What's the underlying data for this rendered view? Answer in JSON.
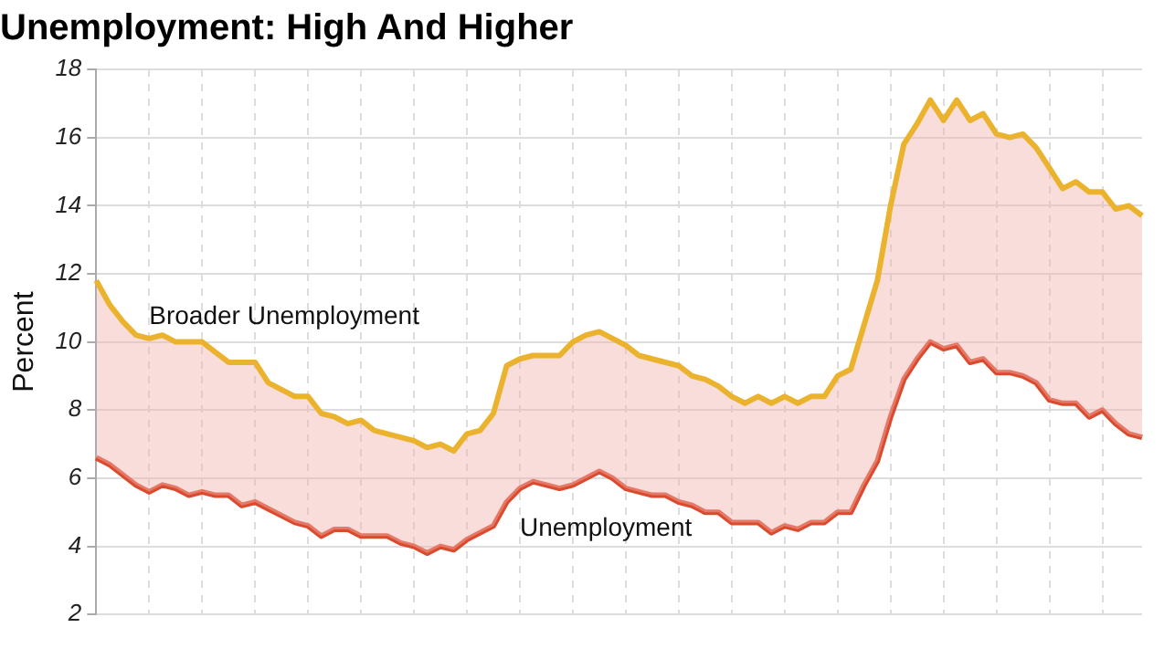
{
  "chart_data": {
    "type": "line",
    "title": "Unemployment: High And Higher",
    "ylabel": "Percent",
    "categories": [
      null,
      null,
      null,
      null,
      null,
      null,
      null,
      null,
      null,
      null,
      null,
      null,
      null,
      null,
      null,
      null,
      null,
      null,
      null,
      null,
      null,
      null,
      null,
      null,
      null,
      null,
      null,
      null,
      null,
      null,
      null,
      null,
      null,
      null,
      null,
      null,
      null,
      null,
      null,
      null,
      null,
      null,
      null,
      null,
      null,
      null,
      null,
      null,
      null,
      null,
      null,
      null,
      null,
      null,
      null,
      null,
      null,
      null,
      null,
      null,
      null,
      null,
      null,
      null,
      null,
      null,
      null,
      null,
      null,
      null,
      null,
      null,
      null,
      null,
      null,
      null,
      null,
      null,
      null,
      null
    ],
    "series": [
      {
        "name": "Broader Unemployment",
        "type": "area",
        "color": "#ebb32d",
        "values": [
          11.8,
          11.1,
          10.6,
          10.2,
          10.1,
          10.2,
          10.0,
          10.0,
          10.0,
          9.7,
          9.4,
          9.4,
          9.4,
          8.8,
          8.6,
          8.4,
          8.4,
          7.9,
          7.8,
          7.6,
          7.7,
          7.4,
          7.3,
          7.2,
          7.1,
          6.9,
          7.0,
          6.8,
          7.3,
          7.4,
          7.9,
          9.3,
          9.5,
          9.6,
          9.6,
          9.6,
          10.0,
          10.2,
          10.3,
          10.1,
          9.9,
          9.6,
          9.5,
          9.4,
          9.3,
          9.0,
          8.9,
          8.7,
          8.4,
          8.2,
          8.4,
          8.2,
          8.4,
          8.2,
          8.4,
          8.4,
          9.0,
          9.2,
          10.5,
          11.8,
          14.0,
          15.8,
          16.4,
          17.1,
          16.5,
          17.1,
          16.5,
          16.7,
          16.1,
          16.0,
          16.1,
          15.7,
          15.1,
          14.5,
          14.7,
          14.4,
          14.4,
          13.9,
          14.0,
          13.7
        ]
      },
      {
        "name": "Unemployment",
        "color": "#dc4a2e",
        "values": [
          6.6,
          6.4,
          6.1,
          5.8,
          5.6,
          5.8,
          5.7,
          5.5,
          5.6,
          5.5,
          5.5,
          5.2,
          5.3,
          5.1,
          4.9,
          4.7,
          4.6,
          4.3,
          4.5,
          4.5,
          4.3,
          4.3,
          4.3,
          4.1,
          4.0,
          3.8,
          4.0,
          3.9,
          4.2,
          4.4,
          4.6,
          5.3,
          5.7,
          5.9,
          5.8,
          5.7,
          5.8,
          6.0,
          6.2,
          6.0,
          5.7,
          5.6,
          5.5,
          5.5,
          5.3,
          5.2,
          5.0,
          5.0,
          4.7,
          4.7,
          4.7,
          4.4,
          4.6,
          4.5,
          4.7,
          4.7,
          5.0,
          5.0,
          5.8,
          6.5,
          7.8,
          8.9,
          9.5,
          10.0,
          9.8,
          9.9,
          9.4,
          9.5,
          9.1,
          9.1,
          9.0,
          8.8,
          8.3,
          8.2,
          8.2,
          7.8,
          8.0,
          7.6,
          7.3,
          7.2
        ]
      }
    ],
    "ylim": [
      2,
      18
    ],
    "yticks": [
      2,
      4,
      6,
      8,
      10,
      12,
      14,
      16,
      18
    ],
    "grid": true,
    "legend": false,
    "marker": "none",
    "line_style": "solid"
  }
}
